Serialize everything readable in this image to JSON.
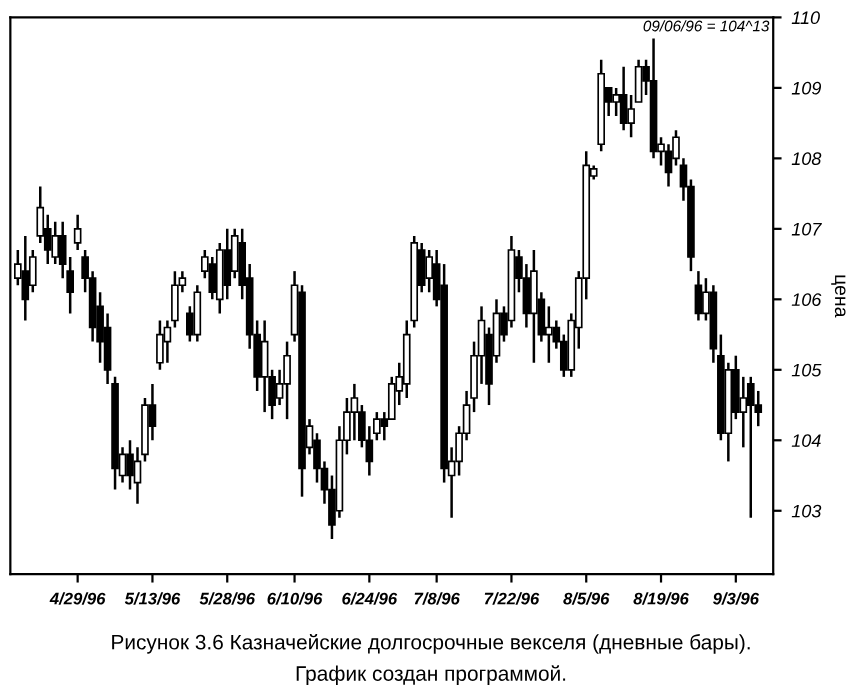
{
  "chart_data": {
    "type": "candlestick",
    "title": "Рисунок 3.6 Казначейские долгосрочные векселя (дневные бары).",
    "ylabel": "цена",
    "annotations": [
      "09/06/96 = 104^13",
      "График создан программой."
    ],
    "categories": [
      null,
      null,
      null,
      null,
      null,
      null,
      null,
      null,
      "4/29/96",
      null,
      null,
      null,
      null,
      null,
      null,
      null,
      null,
      null,
      "5/13/96",
      null,
      null,
      null,
      null,
      null,
      null,
      null,
      null,
      null,
      "5/28/96",
      null,
      null,
      null,
      null,
      null,
      null,
      null,
      null,
      "6/10/96",
      null,
      null,
      null,
      null,
      null,
      null,
      null,
      null,
      null,
      "6/24/96",
      null,
      null,
      null,
      null,
      null,
      null,
      null,
      null,
      "7/8/96",
      null,
      null,
      null,
      null,
      null,
      null,
      null,
      null,
      null,
      "7/22/96",
      null,
      null,
      null,
      null,
      null,
      null,
      null,
      null,
      null,
      "8/5/96",
      null,
      null,
      null,
      null,
      null,
      null,
      null,
      null,
      null,
      "8/19/96",
      null,
      null,
      null,
      null,
      null,
      null,
      null,
      null,
      null,
      "9/3/96",
      null,
      null,
      null
    ],
    "ohlc": [
      [
        106.3,
        106.7,
        106.2,
        106.5
      ],
      [
        106.4,
        106.9,
        105.7,
        106.0
      ],
      [
        106.2,
        106.7,
        106.1,
        106.6
      ],
      [
        106.9,
        107.6,
        106.8,
        107.3
      ],
      [
        107.0,
        107.2,
        106.5,
        106.7
      ],
      [
        106.6,
        107.1,
        106.5,
        106.9
      ],
      [
        106.9,
        107.1,
        106.3,
        106.5
      ],
      [
        106.4,
        106.6,
        105.8,
        106.1
      ],
      [
        106.8,
        107.2,
        106.7,
        107.0
      ],
      [
        106.6,
        106.7,
        106.1,
        106.3
      ],
      [
        106.3,
        106.4,
        105.4,
        105.6
      ],
      [
        105.9,
        106.1,
        105.1,
        105.4
      ],
      [
        105.6,
        105.8,
        104.8,
        105.0
      ],
      [
        104.8,
        104.9,
        103.3,
        103.6
      ],
      [
        103.5,
        103.9,
        103.4,
        103.8
      ],
      [
        103.8,
        104.0,
        103.3,
        103.5
      ],
      [
        103.4,
        103.9,
        103.1,
        103.7
      ],
      [
        103.8,
        104.6,
        103.7,
        104.5
      ],
      [
        104.5,
        104.8,
        104.0,
        104.2
      ],
      [
        105.1,
        105.7,
        105.0,
        105.5
      ],
      [
        105.4,
        105.7,
        105.1,
        105.6
      ],
      [
        105.7,
        106.4,
        105.6,
        106.2
      ],
      [
        106.2,
        106.4,
        106.1,
        106.3
      ],
      [
        105.8,
        105.9,
        105.4,
        105.5
      ],
      [
        105.5,
        106.2,
        105.4,
        106.1
      ],
      [
        106.4,
        106.7,
        106.3,
        106.6
      ],
      [
        106.5,
        106.6,
        106.0,
        106.1
      ],
      [
        106.0,
        106.8,
        105.8,
        106.7
      ],
      [
        106.7,
        107.0,
        106.0,
        106.2
      ],
      [
        106.4,
        107.0,
        106.3,
        106.9
      ],
      [
        106.8,
        107.0,
        106.0,
        106.2
      ],
      [
        106.3,
        106.5,
        105.3,
        105.5
      ],
      [
        105.5,
        105.7,
        104.7,
        104.9
      ],
      [
        104.9,
        105.7,
        104.4,
        105.4
      ],
      [
        104.9,
        105.0,
        104.3,
        104.5
      ],
      [
        104.6,
        105.0,
        104.5,
        104.8
      ],
      [
        104.8,
        105.4,
        104.3,
        105.2
      ],
      [
        105.5,
        106.4,
        105.4,
        106.2
      ],
      [
        106.1,
        106.2,
        103.2,
        103.6
      ],
      [
        103.9,
        104.3,
        103.8,
        104.2
      ],
      [
        104.0,
        104.1,
        103.4,
        103.6
      ],
      [
        103.6,
        103.7,
        103.1,
        103.3
      ],
      [
        103.3,
        103.5,
        102.6,
        102.8
      ],
      [
        103.0,
        104.2,
        102.9,
        104.0
      ],
      [
        104.0,
        104.6,
        103.8,
        104.4
      ],
      [
        104.4,
        104.8,
        104.0,
        104.6
      ],
      [
        104.4,
        104.5,
        103.9,
        104.0
      ],
      [
        104.0,
        104.2,
        103.5,
        103.7
      ],
      [
        104.1,
        104.4,
        104.0,
        104.3
      ],
      [
        104.3,
        104.4,
        104.0,
        104.2
      ],
      [
        104.3,
        104.9,
        104.3,
        104.8
      ],
      [
        104.7,
        105.1,
        104.5,
        104.9
      ],
      [
        104.8,
        105.7,
        104.6,
        105.5
      ],
      [
        105.7,
        106.9,
        105.6,
        106.8
      ],
      [
        106.7,
        106.8,
        106.1,
        106.2
      ],
      [
        106.3,
        106.7,
        106.1,
        106.6
      ],
      [
        106.5,
        106.7,
        105.9,
        106.0
      ],
      [
        106.2,
        106.5,
        103.4,
        103.6
      ],
      [
        103.5,
        103.9,
        102.9,
        103.7
      ],
      [
        103.7,
        104.2,
        103.5,
        104.1
      ],
      [
        104.1,
        104.7,
        104.0,
        104.5
      ],
      [
        104.6,
        105.4,
        104.4,
        105.2
      ],
      [
        105.2,
        105.9,
        104.8,
        105.7
      ],
      [
        105.5,
        105.6,
        104.5,
        104.8
      ],
      [
        105.2,
        106.0,
        105.1,
        105.8
      ],
      [
        105.8,
        105.9,
        105.4,
        105.5
      ],
      [
        105.7,
        106.9,
        105.6,
        106.7
      ],
      [
        106.6,
        106.7,
        106.1,
        106.3
      ],
      [
        106.3,
        106.5,
        105.6,
        105.8
      ],
      [
        105.8,
        106.7,
        105.1,
        106.4
      ],
      [
        106.0,
        106.1,
        105.4,
        105.5
      ],
      [
        105.5,
        105.9,
        105.1,
        105.6
      ],
      [
        105.6,
        105.7,
        105.3,
        105.4
      ],
      [
        105.4,
        105.5,
        104.9,
        105.0
      ],
      [
        105.0,
        105.8,
        104.9,
        105.7
      ],
      [
        105.6,
        106.4,
        105.3,
        106.3
      ],
      [
        106.3,
        108.1,
        106.0,
        107.9
      ],
      [
        107.75,
        107.9,
        107.7,
        107.85
      ],
      [
        108.2,
        109.4,
        108.1,
        109.2
      ],
      [
        109.0,
        109.0,
        108.6,
        108.8
      ],
      [
        108.8,
        109.0,
        108.6,
        108.9
      ],
      [
        108.9,
        109.3,
        108.4,
        108.5
      ],
      [
        108.5,
        108.9,
        108.3,
        108.7
      ],
      [
        108.8,
        109.4,
        108.8,
        109.3
      ],
      [
        109.3,
        109.4,
        108.9,
        109.1
      ],
      [
        109.1,
        109.7,
        108.0,
        108.1
      ],
      [
        108.1,
        108.3,
        107.9,
        108.2
      ],
      [
        108.1,
        108.2,
        107.6,
        107.8
      ],
      [
        108.0,
        108.4,
        107.9,
        108.3
      ],
      [
        107.9,
        108.0,
        107.4,
        107.6
      ],
      [
        107.6,
        107.7,
        106.4,
        106.6
      ],
      [
        106.2,
        106.4,
        105.7,
        105.8
      ],
      [
        105.8,
        106.3,
        105.7,
        106.1
      ],
      [
        106.1,
        106.2,
        105.1,
        105.3
      ],
      [
        105.2,
        105.5,
        104.0,
        104.1
      ],
      [
        104.1,
        105.1,
        103.7,
        105.0
      ],
      [
        105.0,
        105.2,
        104.3,
        104.4
      ],
      [
        104.4,
        104.9,
        103.9,
        104.6
      ],
      [
        104.8,
        104.9,
        102.9,
        104.5
      ],
      [
        104.5,
        104.7,
        104.2,
        104.4
      ]
    ],
    "color": "#000000",
    "ylim": [
      102.1,
      110.0
    ],
    "yticks": [
      103,
      104,
      105,
      106,
      107,
      108,
      109,
      110
    ],
    "grid": false,
    "legend": false
  }
}
